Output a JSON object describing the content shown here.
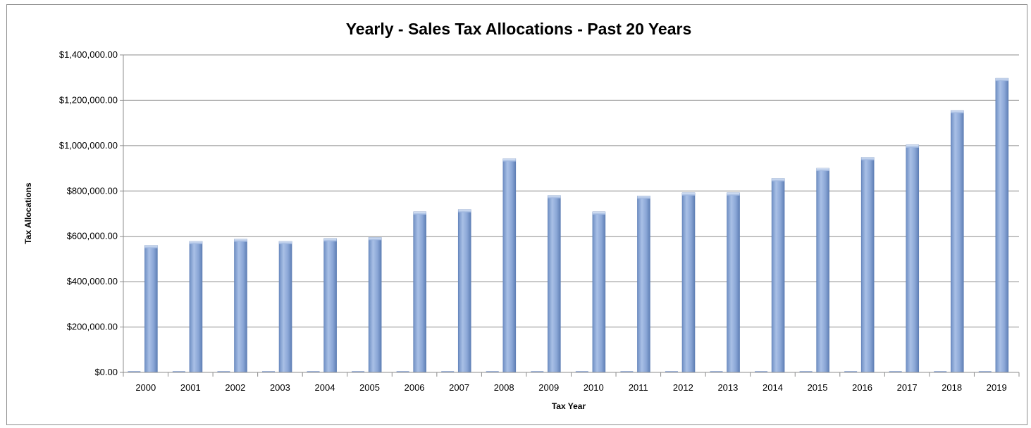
{
  "chart_data": {
    "type": "bar",
    "title": "Yearly - Sales Tax Allocations - Past 20 Years",
    "xlabel": "Tax Year",
    "ylabel": "Tax Allocations",
    "categories": [
      "2000",
      "2001",
      "2002",
      "2003",
      "2004",
      "2005",
      "2006",
      "2007",
      "2008",
      "2009",
      "2010",
      "2011",
      "2012",
      "2013",
      "2014",
      "2015",
      "2016",
      "2017",
      "2018",
      "2019"
    ],
    "series": [
      {
        "values": [
          560000,
          578000,
          588000,
          578000,
          590000,
          595000,
          708000,
          718000,
          942000,
          780000,
          708000,
          778000,
          792000,
          792000,
          855000,
          900000,
          948000,
          1003000,
          1155000,
          1297000
        ]
      }
    ],
    "ylim": [
      0,
      1400000
    ],
    "yticks": [
      "$0.00",
      "$200,000.00",
      "$400,000.00",
      "$600,000.00",
      "$800,000.00",
      "$1,000,000.00",
      "$1,200,000.00",
      "$1,400,000.00"
    ],
    "grid": true,
    "legend": "none",
    "colors": {
      "bar": "#8fabd9",
      "bar_edge": "#5f7fb5",
      "grid": "#8c8c8c"
    }
  }
}
